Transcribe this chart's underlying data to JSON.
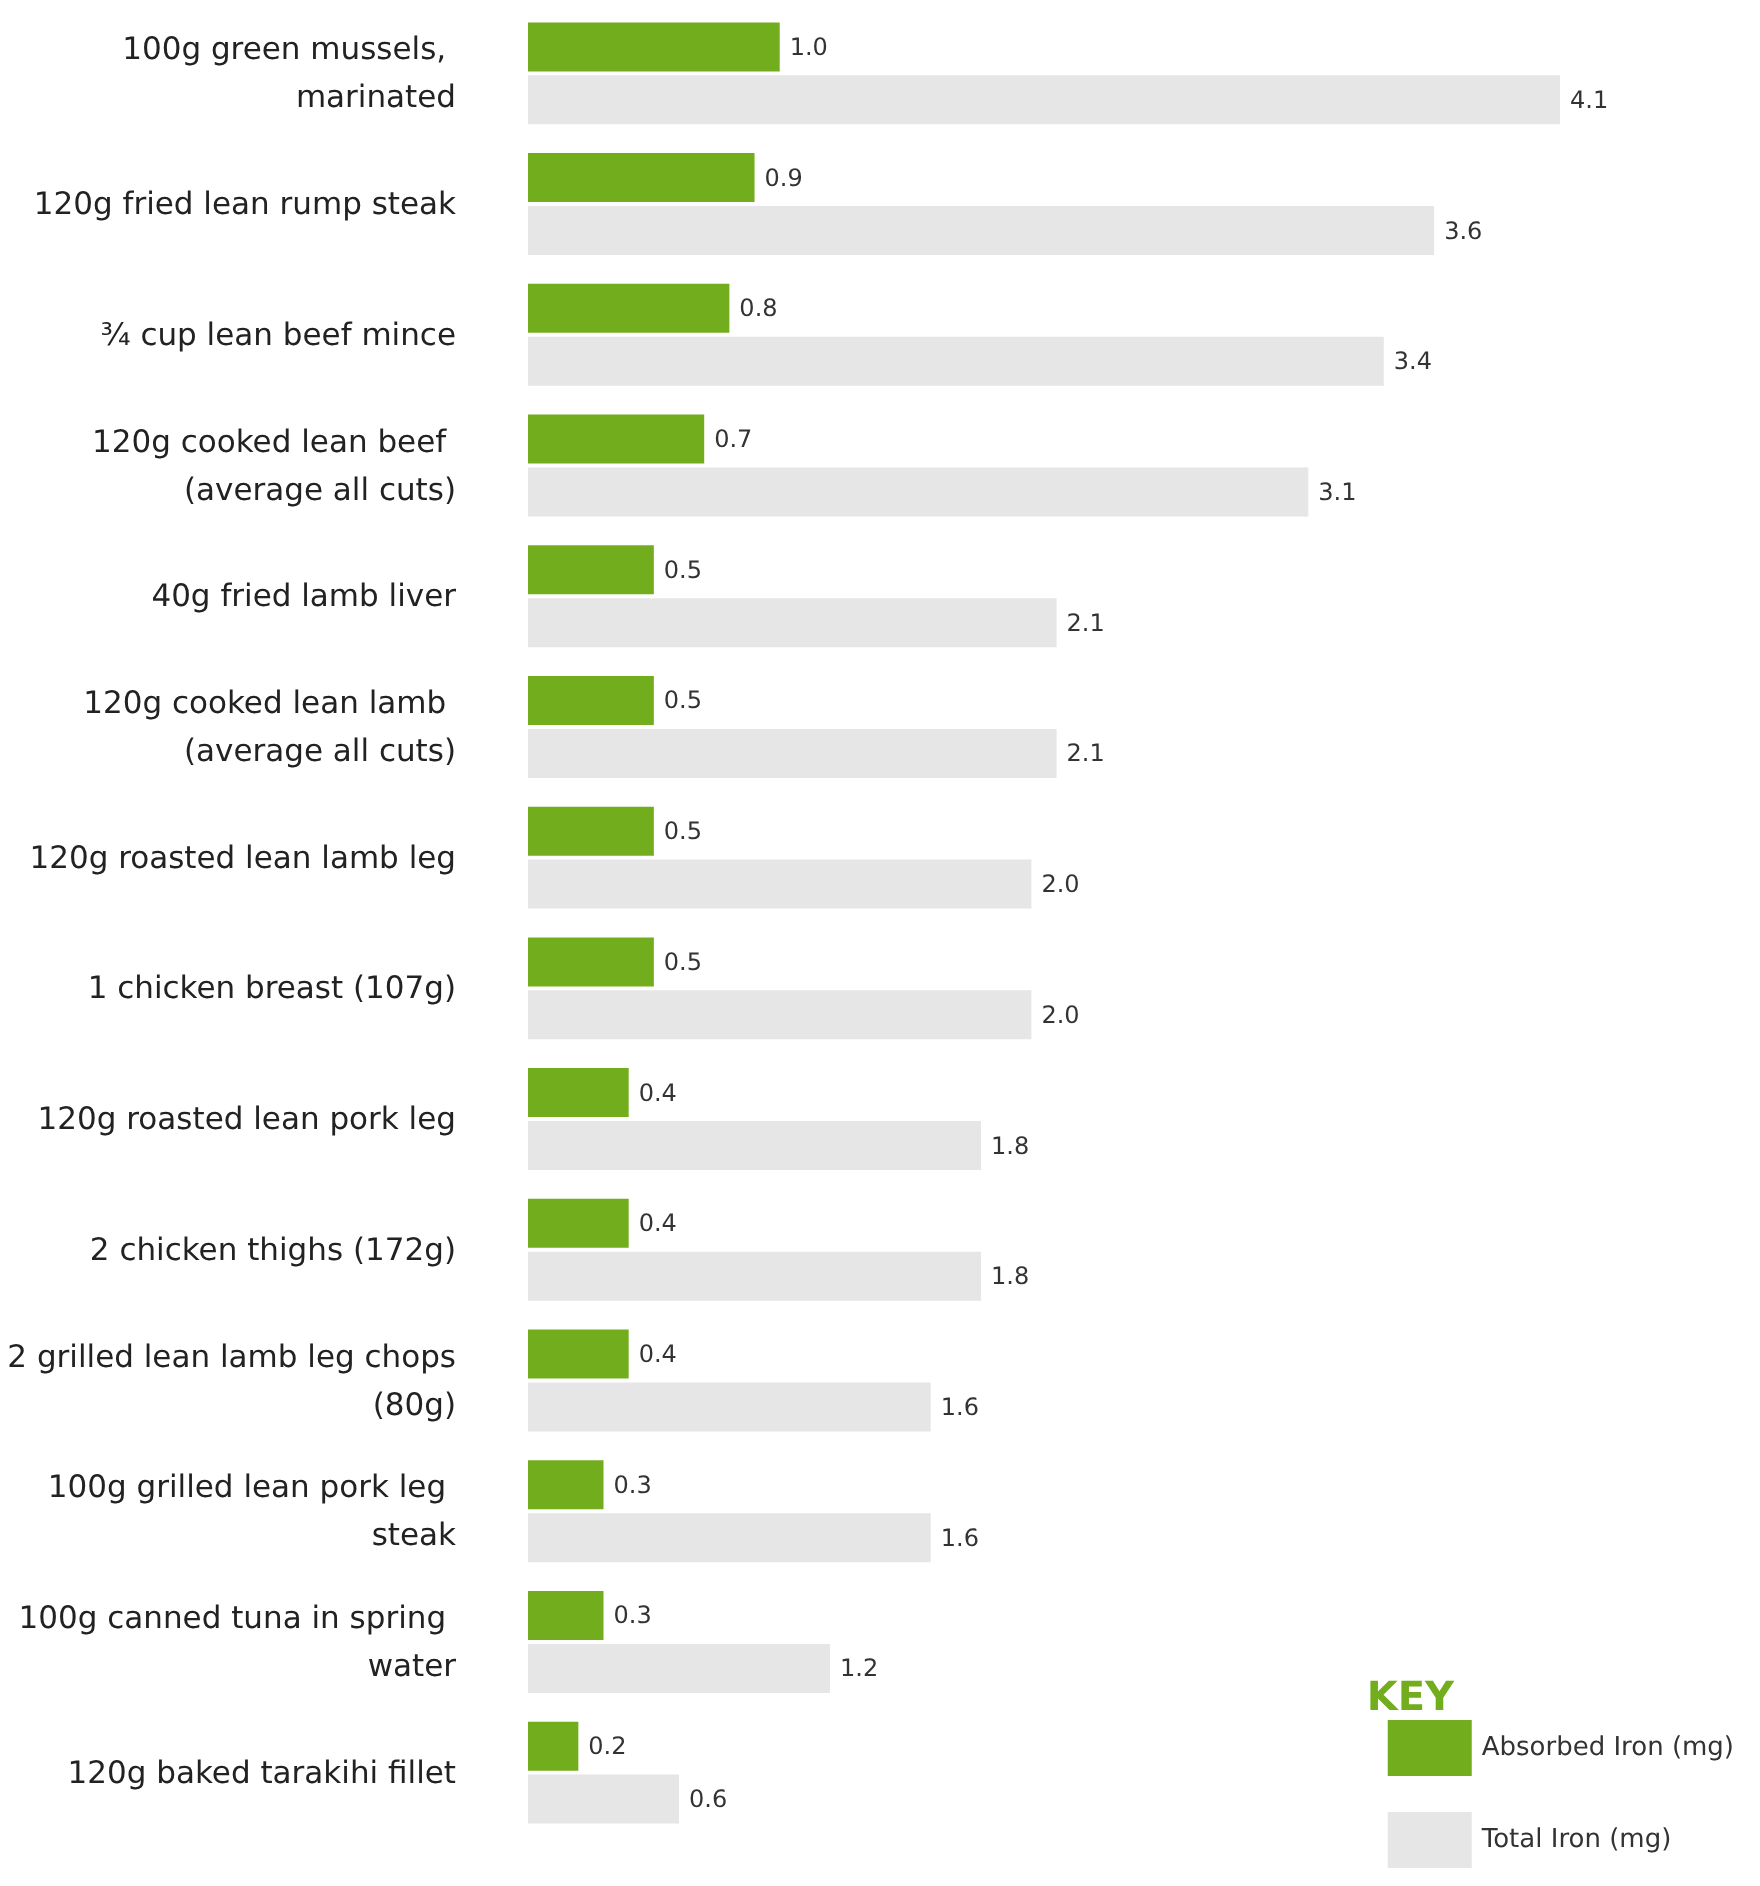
{
  "chart_data": {
    "type": "bar",
    "orientation": "horizontal",
    "legend_title": "KEY",
    "legend": "bottom right",
    "tick_labels": "y",
    "grid": false,
    "categories": [
      "100g green mussels, marinated",
      "120g fried lean rump steak",
      "¾ cup lean beef mince",
      "120g cooked lean beef (average all cuts)",
      "40g fried lamb liver",
      "120g cooked lean lamb (average all cuts)",
      "120g roasted lean lamb leg",
      "1 chicken breast (107g)",
      "120g roasted lean pork leg",
      "2 chicken thighs (172g)",
      "2 grilled lean lamb leg chops (80g)",
      "100g grilled lean pork leg steak",
      "100g canned tuna in spring water",
      "120g baked tarakihi fillet"
    ],
    "series": [
      {
        "name": "Absorbed Iron (mg)",
        "color": "#72ad1e",
        "values": [
          1.0,
          0.9,
          0.8,
          0.7,
          0.5,
          0.5,
          0.5,
          0.5,
          0.4,
          0.4,
          0.4,
          0.3,
          0.3,
          0.2
        ],
        "value_labels": [
          "1.0",
          "0.9",
          "0.8",
          "0.7",
          "0.5",
          "0.5",
          "0.5",
          "0.5",
          "0.4",
          "0.4",
          "0.4",
          "0.3",
          "0.3",
          "0.2"
        ]
      },
      {
        "name": "Total Iron (mg)",
        "color": "#e6e6e6",
        "values": [
          4.1,
          3.6,
          3.4,
          3.1,
          2.1,
          2.1,
          2.0,
          2.0,
          1.8,
          1.8,
          1.6,
          1.6,
          1.2,
          0.6
        ],
        "value_labels": [
          "4.1",
          "3.6",
          "3.4",
          "3.1",
          "2.1",
          "2.1",
          "2.0",
          "2.0",
          "1.8",
          "1.8",
          "1.6",
          "1.6",
          "1.2",
          "0.6"
        ]
      }
    ]
  }
}
